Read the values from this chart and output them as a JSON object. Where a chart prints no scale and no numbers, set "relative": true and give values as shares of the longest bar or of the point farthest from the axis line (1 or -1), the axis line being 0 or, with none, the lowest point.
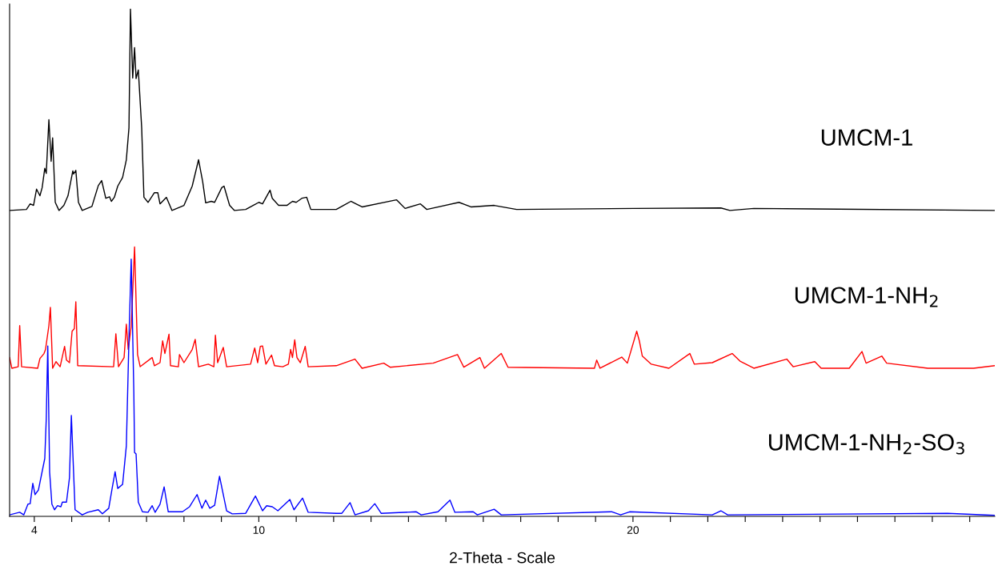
{
  "chart_data": {
    "type": "line",
    "relative": true,
    "xlabel": "2-Theta - Scale",
    "legend": false,
    "grid": false,
    "marker": "none",
    "line_style": "solid",
    "xlim": [
      3.34,
      29.67
    ],
    "xticks": [
      4,
      {
        "value": 5,
        "label": null
      },
      {
        "value": 6,
        "label": null
      },
      {
        "value": 7,
        "label": null
      },
      {
        "value": 8,
        "label": null
      },
      {
        "value": 9,
        "label": null
      },
      10,
      {
        "value": 11,
        "label": null
      },
      {
        "value": 12,
        "label": null
      },
      {
        "value": 13,
        "label": null
      },
      {
        "value": 14,
        "label": null
      },
      {
        "value": 15,
        "label": null
      },
      {
        "value": 16,
        "label": null
      },
      {
        "value": 17,
        "label": null
      },
      {
        "value": 18,
        "label": null
      },
      {
        "value": 19,
        "label": null
      },
      20,
      {
        "value": 21,
        "label": null
      },
      {
        "value": 22,
        "label": null
      },
      {
        "value": 23,
        "label": null
      },
      {
        "value": 24,
        "label": null
      },
      {
        "value": 25,
        "label": null
      },
      {
        "value": 26,
        "label": null
      },
      {
        "value": 27,
        "label": null
      },
      {
        "value": 28,
        "label": null
      },
      {
        "value": 29,
        "label": null
      }
    ],
    "series": [
      {
        "name": "UMCM-1",
        "color": "#000000",
        "x": [
          3.34,
          3.79,
          3.89,
          3.98,
          4.06,
          4.15,
          4.21,
          4.28,
          4.32,
          4.39,
          4.45,
          4.49,
          4.56,
          4.66,
          4.79,
          4.9,
          5.03,
          5.05,
          5.11,
          5.18,
          5.28,
          5.54,
          5.71,
          5.8,
          5.91,
          6.01,
          6.06,
          6.14,
          6.23,
          6.36,
          6.46,
          6.53,
          6.57,
          6.63,
          6.68,
          6.72,
          6.78,
          6.87,
          6.93,
          7.04,
          7.21,
          7.3,
          7.36,
          7.53,
          7.68,
          8.0,
          8.22,
          8.39,
          8.5,
          8.58,
          8.73,
          8.82,
          9.01,
          9.07,
          9.22,
          9.35,
          9.65,
          10.0,
          10.1,
          10.3,
          10.36,
          10.53,
          10.75,
          10.9,
          11.0,
          11.15,
          11.28,
          11.39,
          12.07,
          12.46,
          12.76,
          13.68,
          13.91,
          14.32,
          14.49,
          15.35,
          15.67,
          16.29,
          16.89,
          20.02,
          22.35,
          22.59,
          23.23,
          29.67
        ],
        "values": [
          0.603,
          0.605,
          0.616,
          0.613,
          0.645,
          0.632,
          0.648,
          0.686,
          0.676,
          0.782,
          0.7,
          0.746,
          0.619,
          0.603,
          0.613,
          0.632,
          0.681,
          0.675,
          0.682,
          0.619,
          0.603,
          0.611,
          0.652,
          0.662,
          0.627,
          0.63,
          0.621,
          0.629,
          0.651,
          0.668,
          0.703,
          0.766,
          1.0,
          0.864,
          0.924,
          0.863,
          0.88,
          0.766,
          0.629,
          0.619,
          0.638,
          0.638,
          0.616,
          0.629,
          0.603,
          0.613,
          0.651,
          0.703,
          0.66,
          0.618,
          0.621,
          0.619,
          0.648,
          0.651,
          0.613,
          0.603,
          0.605,
          0.619,
          0.616,
          0.643,
          0.627,
          0.613,
          0.613,
          0.621,
          0.619,
          0.627,
          0.629,
          0.605,
          0.605,
          0.621,
          0.61,
          0.624,
          0.607,
          0.616,
          0.605,
          0.619,
          0.61,
          0.613,
          0.605,
          0.607,
          0.608,
          0.603,
          0.607,
          0.603
        ]
      },
      {
        "name": "UMCM-1-NH$_{2}$",
        "color": "#ff0000",
        "x": [
          3.34,
          3.4,
          3.57,
          3.61,
          3.66,
          4.09,
          4.15,
          4.26,
          4.3,
          4.39,
          4.43,
          4.49,
          4.58,
          4.69,
          4.81,
          4.86,
          4.94,
          5.01,
          5.07,
          5.11,
          5.16,
          6.12,
          6.18,
          6.25,
          6.4,
          6.46,
          6.51,
          6.59,
          6.68,
          6.76,
          6.83,
          7.15,
          7.21,
          7.36,
          7.43,
          7.49,
          7.6,
          7.64,
          7.85,
          7.88,
          8.0,
          8.22,
          8.3,
          8.39,
          8.65,
          8.8,
          8.84,
          8.9,
          9.05,
          9.14,
          9.78,
          9.89,
          9.97,
          10.04,
          10.1,
          10.19,
          10.34,
          10.42,
          10.64,
          10.79,
          10.85,
          10.9,
          10.96,
          11.02,
          11.11,
          11.24,
          11.32,
          12.07,
          12.57,
          12.76,
          13.34,
          13.51,
          14.66,
          15.31,
          15.48,
          15.91,
          16.03,
          16.48,
          16.66,
          18.97,
          19.03,
          19.12,
          19.7,
          19.85,
          20.1,
          20.17,
          20.25,
          20.49,
          20.96,
          21.52,
          21.64,
          22.12,
          22.65,
          22.86,
          23.23,
          24.11,
          24.28,
          24.86,
          25.03,
          25.78,
          26.12,
          26.23,
          26.65,
          26.78,
          27.88,
          29.1,
          29.67
        ],
        "values": [
          0.313,
          0.292,
          0.295,
          0.376,
          0.295,
          0.292,
          0.311,
          0.321,
          0.329,
          0.376,
          0.412,
          0.292,
          0.305,
          0.295,
          0.335,
          0.308,
          0.303,
          0.365,
          0.37,
          0.423,
          0.297,
          0.295,
          0.36,
          0.295,
          0.313,
          0.379,
          0.329,
          0.374,
          0.531,
          0.319,
          0.295,
          0.313,
          0.297,
          0.303,
          0.346,
          0.321,
          0.359,
          0.297,
          0.295,
          0.319,
          0.303,
          0.329,
          0.349,
          0.295,
          0.3,
          0.295,
          0.357,
          0.303,
          0.333,
          0.295,
          0.3,
          0.332,
          0.303,
          0.335,
          0.336,
          0.3,
          0.318,
          0.297,
          0.295,
          0.3,
          0.329,
          0.313,
          0.348,
          0.313,
          0.303,
          0.335,
          0.295,
          0.297,
          0.31,
          0.292,
          0.302,
          0.294,
          0.302,
          0.319,
          0.294,
          0.313,
          0.292,
          0.321,
          0.294,
          0.292,
          0.308,
          0.292,
          0.314,
          0.302,
          0.365,
          0.346,
          0.316,
          0.3,
          0.292,
          0.321,
          0.3,
          0.303,
          0.321,
          0.306,
          0.292,
          0.31,
          0.295,
          0.305,
          0.292,
          0.292,
          0.325,
          0.302,
          0.316,
          0.302,
          0.292,
          0.292,
          0.297
        ]
      },
      {
        "name": "UMCM-1-NH$_{2}$-SO$_{3}$",
        "color": "#0000ff",
        "x": [
          3.34,
          3.61,
          3.72,
          3.83,
          3.89,
          3.96,
          4.02,
          4.11,
          4.28,
          4.32,
          4.36,
          4.41,
          4.47,
          4.54,
          4.62,
          4.71,
          4.75,
          4.86,
          4.94,
          4.99,
          5.05,
          5.09,
          5.28,
          5.43,
          5.71,
          5.82,
          5.99,
          6.08,
          6.16,
          6.23,
          6.36,
          6.46,
          6.53,
          6.59,
          6.66,
          6.68,
          6.72,
          6.78,
          6.89,
          7.04,
          7.15,
          7.23,
          7.36,
          7.47,
          7.58,
          7.96,
          8.15,
          8.35,
          8.48,
          8.58,
          8.69,
          8.82,
          8.95,
          9.14,
          9.29,
          9.65,
          9.91,
          10.1,
          10.21,
          10.36,
          10.51,
          10.83,
          10.94,
          11.17,
          11.32,
          12.07,
          12.22,
          12.44,
          12.57,
          12.93,
          13.1,
          13.27,
          14.21,
          14.34,
          14.79,
          15.11,
          15.24,
          15.73,
          15.84,
          16.29,
          16.48,
          19.44,
          19.67,
          19.91,
          22.12,
          22.35,
          22.53,
          28.41,
          29.67
        ],
        "values": [
          0.003,
          0.008,
          0.003,
          0.024,
          0.025,
          0.065,
          0.043,
          0.052,
          0.114,
          0.193,
          0.336,
          0.087,
          0.024,
          0.013,
          0.021,
          0.019,
          0.028,
          0.028,
          0.076,
          0.199,
          0.087,
          0.013,
          0.003,
          0.008,
          0.013,
          0.005,
          0.016,
          0.055,
          0.088,
          0.055,
          0.063,
          0.139,
          0.351,
          0.507,
          0.245,
          0.126,
          0.123,
          0.028,
          0.009,
          0.008,
          0.021,
          0.008,
          0.024,
          0.058,
          0.009,
          0.009,
          0.019,
          0.043,
          0.016,
          0.032,
          0.016,
          0.022,
          0.079,
          0.011,
          0.005,
          0.006,
          0.04,
          0.011,
          0.021,
          0.019,
          0.011,
          0.033,
          0.013,
          0.036,
          0.008,
          0.006,
          0.006,
          0.027,
          0.003,
          0.011,
          0.025,
          0.006,
          0.009,
          0.003,
          0.009,
          0.032,
          0.008,
          0.009,
          0.003,
          0.014,
          0.003,
          0.009,
          0.003,
          0.009,
          0.003,
          0.011,
          0.003,
          0.006,
          0.002
        ]
      }
    ]
  }
}
